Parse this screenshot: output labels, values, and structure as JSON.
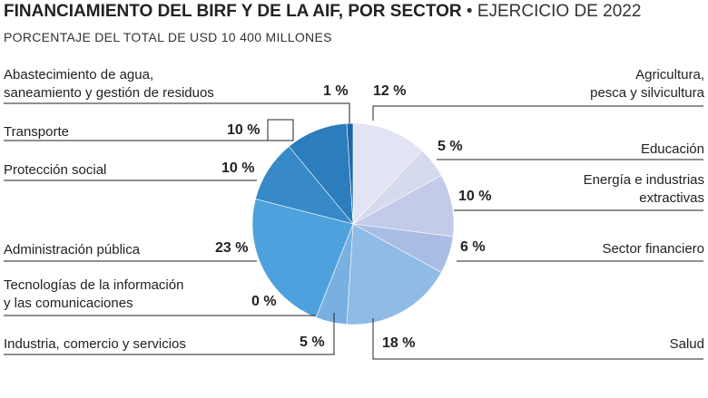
{
  "title": {
    "bold": "FINANCIAMIENTO DEL BIRF Y DE LA AIF, POR SECTOR",
    "separator": "•",
    "light": "EJERCICIO DE 2022"
  },
  "subtitle": "PORCENTAJE DEL TOTAL DE USD 10 400 MILLONES",
  "chart_data": {
    "type": "pie",
    "title": "FINANCIAMIENTO DEL BIRF Y DE LA AIF, POR SECTOR • EJERCICIO DE 2022",
    "subtitle": "PORCENTAJE DEL TOTAL DE USD 10 400 MILLONES",
    "total": "USD 10 400 millones",
    "slices": [
      {
        "label_lines": [
          "Agricultura,",
          "pesca y silvicultura"
        ],
        "value": 12,
        "pct_label": "12 %",
        "color": "#e2e4f3"
      },
      {
        "label_lines": [
          "Educación"
        ],
        "value": 5,
        "pct_label": "5 %",
        "color": "#d5daee"
      },
      {
        "label_lines": [
          "Energía e industrias",
          "extractivas"
        ],
        "value": 10,
        "pct_label": "10 %",
        "color": "#c3cbe9"
      },
      {
        "label_lines": [
          "Sector financiero"
        ],
        "value": 6,
        "pct_label": "6 %",
        "color": "#a9bde4"
      },
      {
        "label_lines": [
          "Salud"
        ],
        "value": 18,
        "pct_label": "18 %",
        "color": "#8fbbe6"
      },
      {
        "label_lines": [
          "Industria, comercio y servicios"
        ],
        "value": 5,
        "pct_label": "5 %",
        "color": "#7aafe2"
      },
      {
        "label_lines": [
          "Tecnologías de la información",
          "y las comunicaciones"
        ],
        "value": 0,
        "pct_label": "0 %",
        "color": "#4f9bd8"
      },
      {
        "label_lines": [
          "Administración pública"
        ],
        "value": 23,
        "pct_label": "23 %",
        "color": "#4da2de"
      },
      {
        "label_lines": [
          "Protección social"
        ],
        "value": 10,
        "pct_label": "10 %",
        "color": "#3789c7"
      },
      {
        "label_lines": [
          "Transporte"
        ],
        "value": 10,
        "pct_label": "10 %",
        "color": "#2b7dbd"
      },
      {
        "label_lines": [
          "Abastecimiento de agua,",
          "saneamiento y gestión de residuos"
        ],
        "value": 1,
        "pct_label": "1 %",
        "color": "#1f65a3"
      }
    ]
  }
}
